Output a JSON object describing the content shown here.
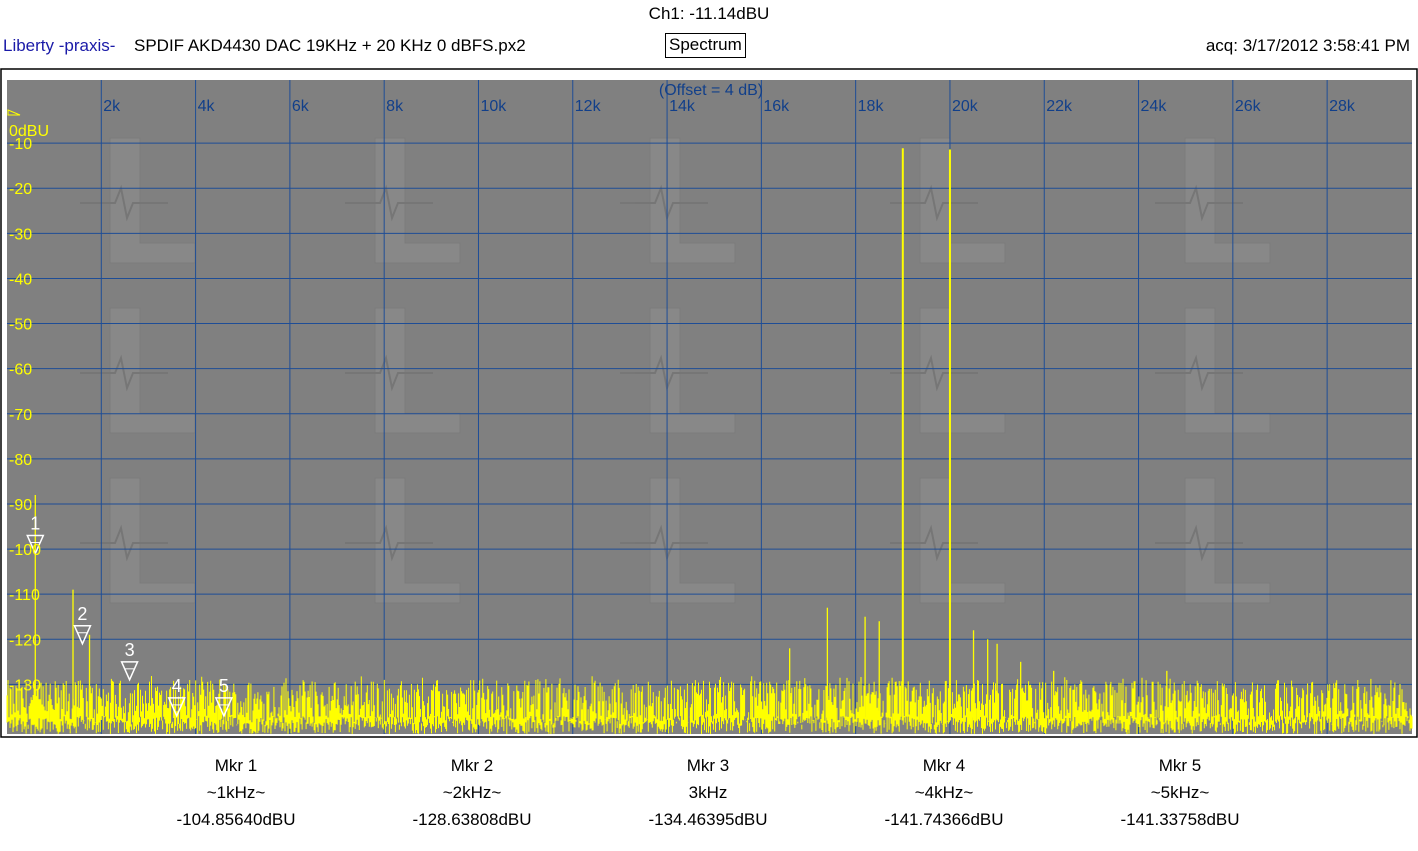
{
  "header": {
    "channel_readout": "Ch1: -11.14dBU",
    "brand": "Liberty -praxis-",
    "filename": "SPDIF AKD4430 DAC 19KHz + 20 KHz 0 dBFS.px2",
    "mode_button": "Spectrum",
    "acquired": "acq: 3/17/2012 3:58:41 PM"
  },
  "plot": {
    "offset_label": "(Offset = 4 dB)",
    "top_tick_label": "0dBU"
  },
  "colors": {
    "background": "#808080",
    "grid": "#1e4d96",
    "trace": "#ffff00",
    "x_labels": "#113f8a",
    "y_labels": "#ffff00",
    "frame": "#000000"
  },
  "chart_data": {
    "type": "line",
    "xlim": [
      0,
      29800
    ],
    "ylim": [
      -141,
      4
    ],
    "x_ticks": [
      2000,
      4000,
      6000,
      8000,
      10000,
      12000,
      14000,
      16000,
      18000,
      20000,
      22000,
      24000,
      26000,
      28000
    ],
    "x_tick_labels": [
      "2k",
      "4k",
      "6k",
      "8k",
      "10k",
      "12k",
      "14k",
      "16k",
      "18k",
      "20k",
      "22k",
      "24k",
      "26k",
      "28k"
    ],
    "y_ticks": [
      -10,
      -20,
      -30,
      -40,
      -50,
      -60,
      -70,
      -80,
      -90,
      -100,
      -110,
      -120,
      -130
    ],
    "y_tick_labels": [
      "-10",
      "-20",
      "-30",
      "-40",
      "-50",
      "-60",
      "-70",
      "-80",
      "-90",
      "-100",
      "-110",
      "-120",
      "-130"
    ],
    "grid": true,
    "noise_floor_range": [
      -141,
      -130
    ],
    "peaks": [
      {
        "x": 19000,
        "y": -11.14
      },
      {
        "x": 20000,
        "y": -11.4
      },
      {
        "x": 600,
        "y": -88
      },
      {
        "x": 1400,
        "y": -109
      },
      {
        "x": 1750,
        "y": -119
      },
      {
        "x": 16600,
        "y": -122
      },
      {
        "x": 17400,
        "y": -113
      },
      {
        "x": 18200,
        "y": -115
      },
      {
        "x": 18500,
        "y": -116
      },
      {
        "x": 20500,
        "y": -118
      },
      {
        "x": 20800,
        "y": -120
      },
      {
        "x": 21000,
        "y": -121
      },
      {
        "x": 21500,
        "y": -125
      },
      {
        "x": 22200,
        "y": -127
      },
      {
        "x": 23400,
        "y": -130
      },
      {
        "x": 24600,
        "y": -127
      },
      {
        "x": 25500,
        "y": -131
      },
      {
        "x": 28000,
        "y": -133
      }
    ],
    "markers": [
      {
        "label": "1",
        "x": 600,
        "y": -97,
        "name": "Mkr 1",
        "freq": "~1kHz~",
        "value": "-104.85640dBU"
      },
      {
        "label": "2",
        "x": 1600,
        "y": -117,
        "name": "Mkr 2",
        "freq": "~2kHz~",
        "value": "-128.63808dBU"
      },
      {
        "label": "3",
        "x": 2600,
        "y": -125,
        "name": "Mkr 3",
        "freq": "3kHz",
        "value": "-134.46395dBU"
      },
      {
        "label": "4",
        "x": 3600,
        "y": -133,
        "name": "Mkr 4",
        "freq": "~4kHz~",
        "value": "-141.74366dBU"
      },
      {
        "label": "5",
        "x": 4600,
        "y": -133,
        "name": "Mkr 5",
        "freq": "~5kHz~",
        "value": "-141.33758dBU"
      }
    ]
  }
}
